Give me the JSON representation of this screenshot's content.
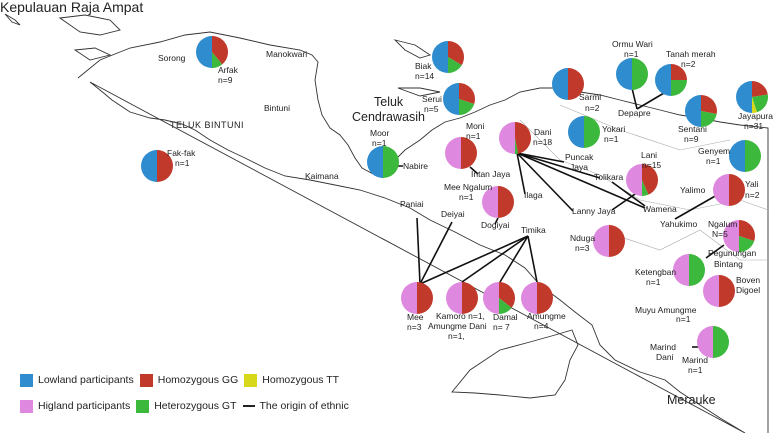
{
  "colors": {
    "lowland": "#2e8ccf",
    "highland": "#df88df",
    "GG": "#c0392b",
    "GT": "#3cb83c",
    "TT": "#d8d81a"
  },
  "labels": [
    "Kepulauan Raja Ampat",
    "Sorong",
    "Arfak",
    "n=9",
    "Manokwari",
    "Bintuni",
    "TELUK BINTUNI",
    "Fak-fak",
    "n=1",
    "Kaimana",
    "Teluk",
    "Cendrawasih",
    "Biak",
    "n=14",
    "Serui",
    "n=5",
    "Moor",
    "n=1",
    "Nabire",
    "Moni",
    "n=1",
    "Intan Jaya",
    "Dani",
    "n=18",
    "Mee Ngalum",
    "n=1",
    "Ilaga",
    "Puncak",
    "Jaya",
    "Tolikara",
    "Lanny Jaya",
    "Wamena",
    "Ormu Wari",
    "n=1",
    "Tanah merah",
    "n=2",
    "Sarmi",
    "n=2",
    "Depapre",
    "Yokari",
    "n=1",
    "Sentani",
    "n=9",
    "Jayapura",
    "n=31",
    "Genyem",
    "n=1",
    "Lani",
    "n=15",
    "Yalimo",
    "Yali",
    "n=2",
    "Paniai",
    "Deiyai",
    "Dogiyai",
    "Timika",
    "Nduga",
    "n=3",
    "Yahukimo",
    "Ngalum",
    "N=5",
    "Pegunungan",
    "Bintang",
    "Ketengban",
    "n=1",
    "Boven",
    "Digoel",
    "Mee",
    "n=3",
    "Kamoro n=1,",
    "Amungme  Dani",
    "n=1,",
    "Damal",
    "n= 7",
    "Amungme",
    "n=4",
    "Muyu Amungme",
    "n=1",
    "Marind",
    "Dani",
    "Marind",
    "n=1",
    "Merauke"
  ],
  "pies": [
    {
      "ethnic": "Arfak",
      "group": "lowland",
      "GG": 0.78,
      "GT": 0.22,
      "TT": 0
    },
    {
      "ethnic": "Fak-fak",
      "group": "lowland",
      "GG": 1,
      "GT": 0,
      "TT": 0
    },
    {
      "ethnic": "Biak",
      "group": "lowland",
      "GG": 0.67,
      "GT": 0.33,
      "TT": 0
    },
    {
      "ethnic": "Serui",
      "group": "lowland",
      "GG": 0.6,
      "GT": 0.4,
      "TT": 0
    },
    {
      "ethnic": "Moor",
      "group": "lowland",
      "GG": 0,
      "GT": 1,
      "TT": 0
    },
    {
      "ethnic": "Sarmi",
      "group": "lowland",
      "GG": 1,
      "GT": 0,
      "TT": 0
    },
    {
      "ethnic": "Ormu Wari",
      "group": "lowland",
      "GG": 0,
      "GT": 1,
      "TT": 0
    },
    {
      "ethnic": "Tanah merah",
      "group": "lowland",
      "GG": 0.5,
      "GT": 0.5,
      "TT": 0
    },
    {
      "ethnic": "Yokari",
      "group": "lowland",
      "GG": 0,
      "GT": 1,
      "TT": 0
    },
    {
      "ethnic": "Sentani",
      "group": "lowland",
      "GG": 0.56,
      "GT": 0.44,
      "TT": 0
    },
    {
      "ethnic": "Jayapura",
      "group": "lowland",
      "GG": 0.45,
      "GT": 0.45,
      "TT": 0.1
    },
    {
      "ethnic": "Genyem",
      "group": "lowland",
      "GG": 0,
      "GT": 1,
      "TT": 0
    },
    {
      "ethnic": "Moni",
      "group": "highland",
      "GG": 1,
      "GT": 0,
      "TT": 0
    },
    {
      "ethnic": "Dani",
      "group": "highland",
      "GG": 0.94,
      "GT": 0.06,
      "TT": 0
    },
    {
      "ethnic": "Lani",
      "group": "highland",
      "GG": 0.87,
      "GT": 0.13,
      "TT": 0
    },
    {
      "ethnic": "Yali",
      "group": "highland",
      "GG": 1,
      "GT": 0,
      "TT": 0
    },
    {
      "ethnic": "Mee Ngalum",
      "group": "highland",
      "GG": 1,
      "GT": 0,
      "TT": 0
    },
    {
      "ethnic": "Nduga",
      "group": "highland",
      "GG": 1,
      "GT": 0,
      "TT": 0
    },
    {
      "ethnic": "Ngalum",
      "group": "highland",
      "GG": 0.6,
      "GT": 0.4,
      "TT": 0
    },
    {
      "ethnic": "Ketengban",
      "group": "highland",
      "GG": 0,
      "GT": 1,
      "TT": 0
    },
    {
      "ethnic": "Boven Digoel",
      "group": "highland",
      "GG": 1,
      "GT": 0,
      "TT": 0
    },
    {
      "ethnic": "Mee",
      "group": "highland",
      "GG": 1,
      "GT": 0,
      "TT": 0
    },
    {
      "ethnic": "Kamoro, Amungme Dani",
      "group": "highland",
      "GG": 1,
      "GT": 0,
      "TT": 0
    },
    {
      "ethnic": "Damal",
      "group": "highland",
      "GG": 0.71,
      "GT": 0.29,
      "TT": 0
    },
    {
      "ethnic": "Amungme",
      "group": "highland",
      "GG": 1,
      "GT": 0,
      "TT": 0
    },
    {
      "ethnic": "Marind",
      "group": "highland",
      "GG": 0,
      "GT": 1,
      "TT": 0
    }
  ],
  "legend": {
    "lowland": "Lowland participants",
    "GG": "Homozygous GG",
    "TT": "Homozygous TT",
    "highland": "Higland participants",
    "GT": "Heterozygous GT",
    "origin": "The origin of ethnic"
  }
}
